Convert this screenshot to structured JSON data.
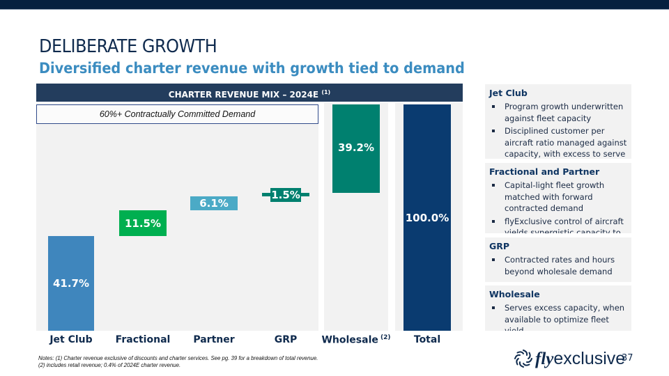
{
  "header": {
    "title": "DELIBERATE GROWTH",
    "subtitle": "Diversified charter revenue with growth tied to demand"
  },
  "chart_data": {
    "type": "bar",
    "subtype": "waterfall",
    "title": "CHARTER REVENUE MIX – 2024E",
    "title_footnote": "(1)",
    "annotation": "60%+ Contractually Committed Demand",
    "categories": [
      "Jet Club",
      "Fractional",
      "Partner",
      "GRP",
      "Wholesale",
      "Total"
    ],
    "category_footnotes": [
      "",
      "",
      "",
      "",
      "(2)",
      ""
    ],
    "values": [
      41.7,
      11.5,
      6.1,
      1.5,
      39.2,
      100.0
    ],
    "labels": [
      "41.7%",
      "11.5%",
      "6.1%",
      "1.5%",
      "39.2%",
      "100.0%"
    ],
    "colors": [
      "#3f86bd",
      "#00af50",
      "#4baac6",
      "#00806f",
      "#00806f",
      "#0a3b70"
    ],
    "unit": "%",
    "ylim": [
      0,
      100
    ],
    "grid": false
  },
  "sidebar": [
    {
      "heading": "Jet Club",
      "bullets": [
        "Program growth underwritten against fleet capacity",
        "Disciplined customer per aircraft ratio managed against capacity, with excess to serve demand"
      ]
    },
    {
      "heading": "Fractional and Partner",
      "bullets": [
        "Capital-light fleet growth matched with forward contracted demand",
        "flyExclusive control of aircraft yields synergistic capacity to business model"
      ]
    },
    {
      "heading": "GRP",
      "bullets": [
        "Contracted rates and hours beyond wholesale demand"
      ]
    },
    {
      "heading": "Wholesale",
      "bullets": [
        "Serves excess capacity, when available to optimize fleet yield"
      ]
    }
  ],
  "notes": {
    "line1": "Notes: (1) Charter revenue exclusive of discounts and charter services. See pg. 39 for a breakdown of total revenue.",
    "line2": "(2) includes retail revenue; 0.4% of 2024E charter revenue."
  },
  "footer": {
    "logo_fly": "fly",
    "logo_rest": "exclusive",
    "page_number": "37"
  }
}
